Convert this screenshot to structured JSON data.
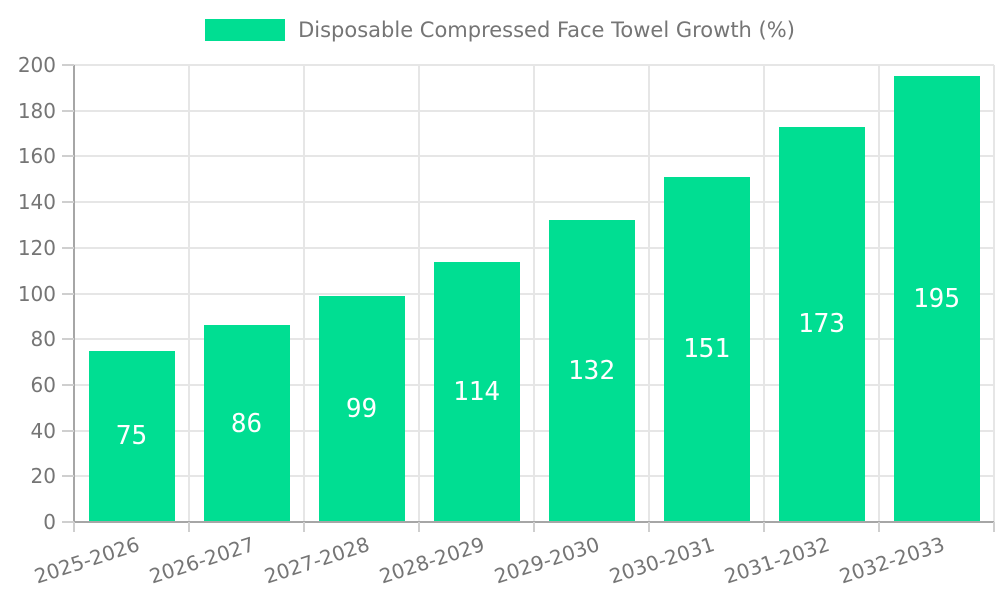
{
  "chart_data": {
    "type": "bar",
    "title": "Disposable Compressed Face Towel Growth (%)",
    "categories": [
      "2025-2026",
      "2026-2027",
      "2027-2028",
      "2028-2029",
      "2029-2030",
      "2030-2031",
      "2031-2032",
      "2032-2033"
    ],
    "series": [
      {
        "name": "Disposable Compressed Face Towel Growth (%)",
        "values": [
          75,
          86,
          99,
          114,
          132,
          151,
          173,
          195
        ]
      }
    ],
    "values": [
      75,
      86,
      99,
      114,
      132,
      151,
      173,
      195
    ],
    "value_labels": [
      "75",
      "86",
      "99",
      "114",
      "132",
      "151",
      "173",
      "195"
    ],
    "value_labels_position": "inside-center",
    "xlabel": "",
    "ylabel": "",
    "ylim": [
      0,
      200
    ],
    "ytick_step": 20,
    "ytick_labels": [
      "0",
      "20",
      "40",
      "60",
      "80",
      "100",
      "120",
      "140",
      "160",
      "180",
      "200"
    ],
    "grid": true,
    "legend_position": "top",
    "colors": {
      "bar": "#00DE92",
      "value_label": "#ffffff",
      "axis_text": "#757575",
      "grid_line": "#e6e6e6",
      "axis_line": "#a6a6a6",
      "tick_mark": "#cfcfcf",
      "background": "#ffffff"
    }
  }
}
